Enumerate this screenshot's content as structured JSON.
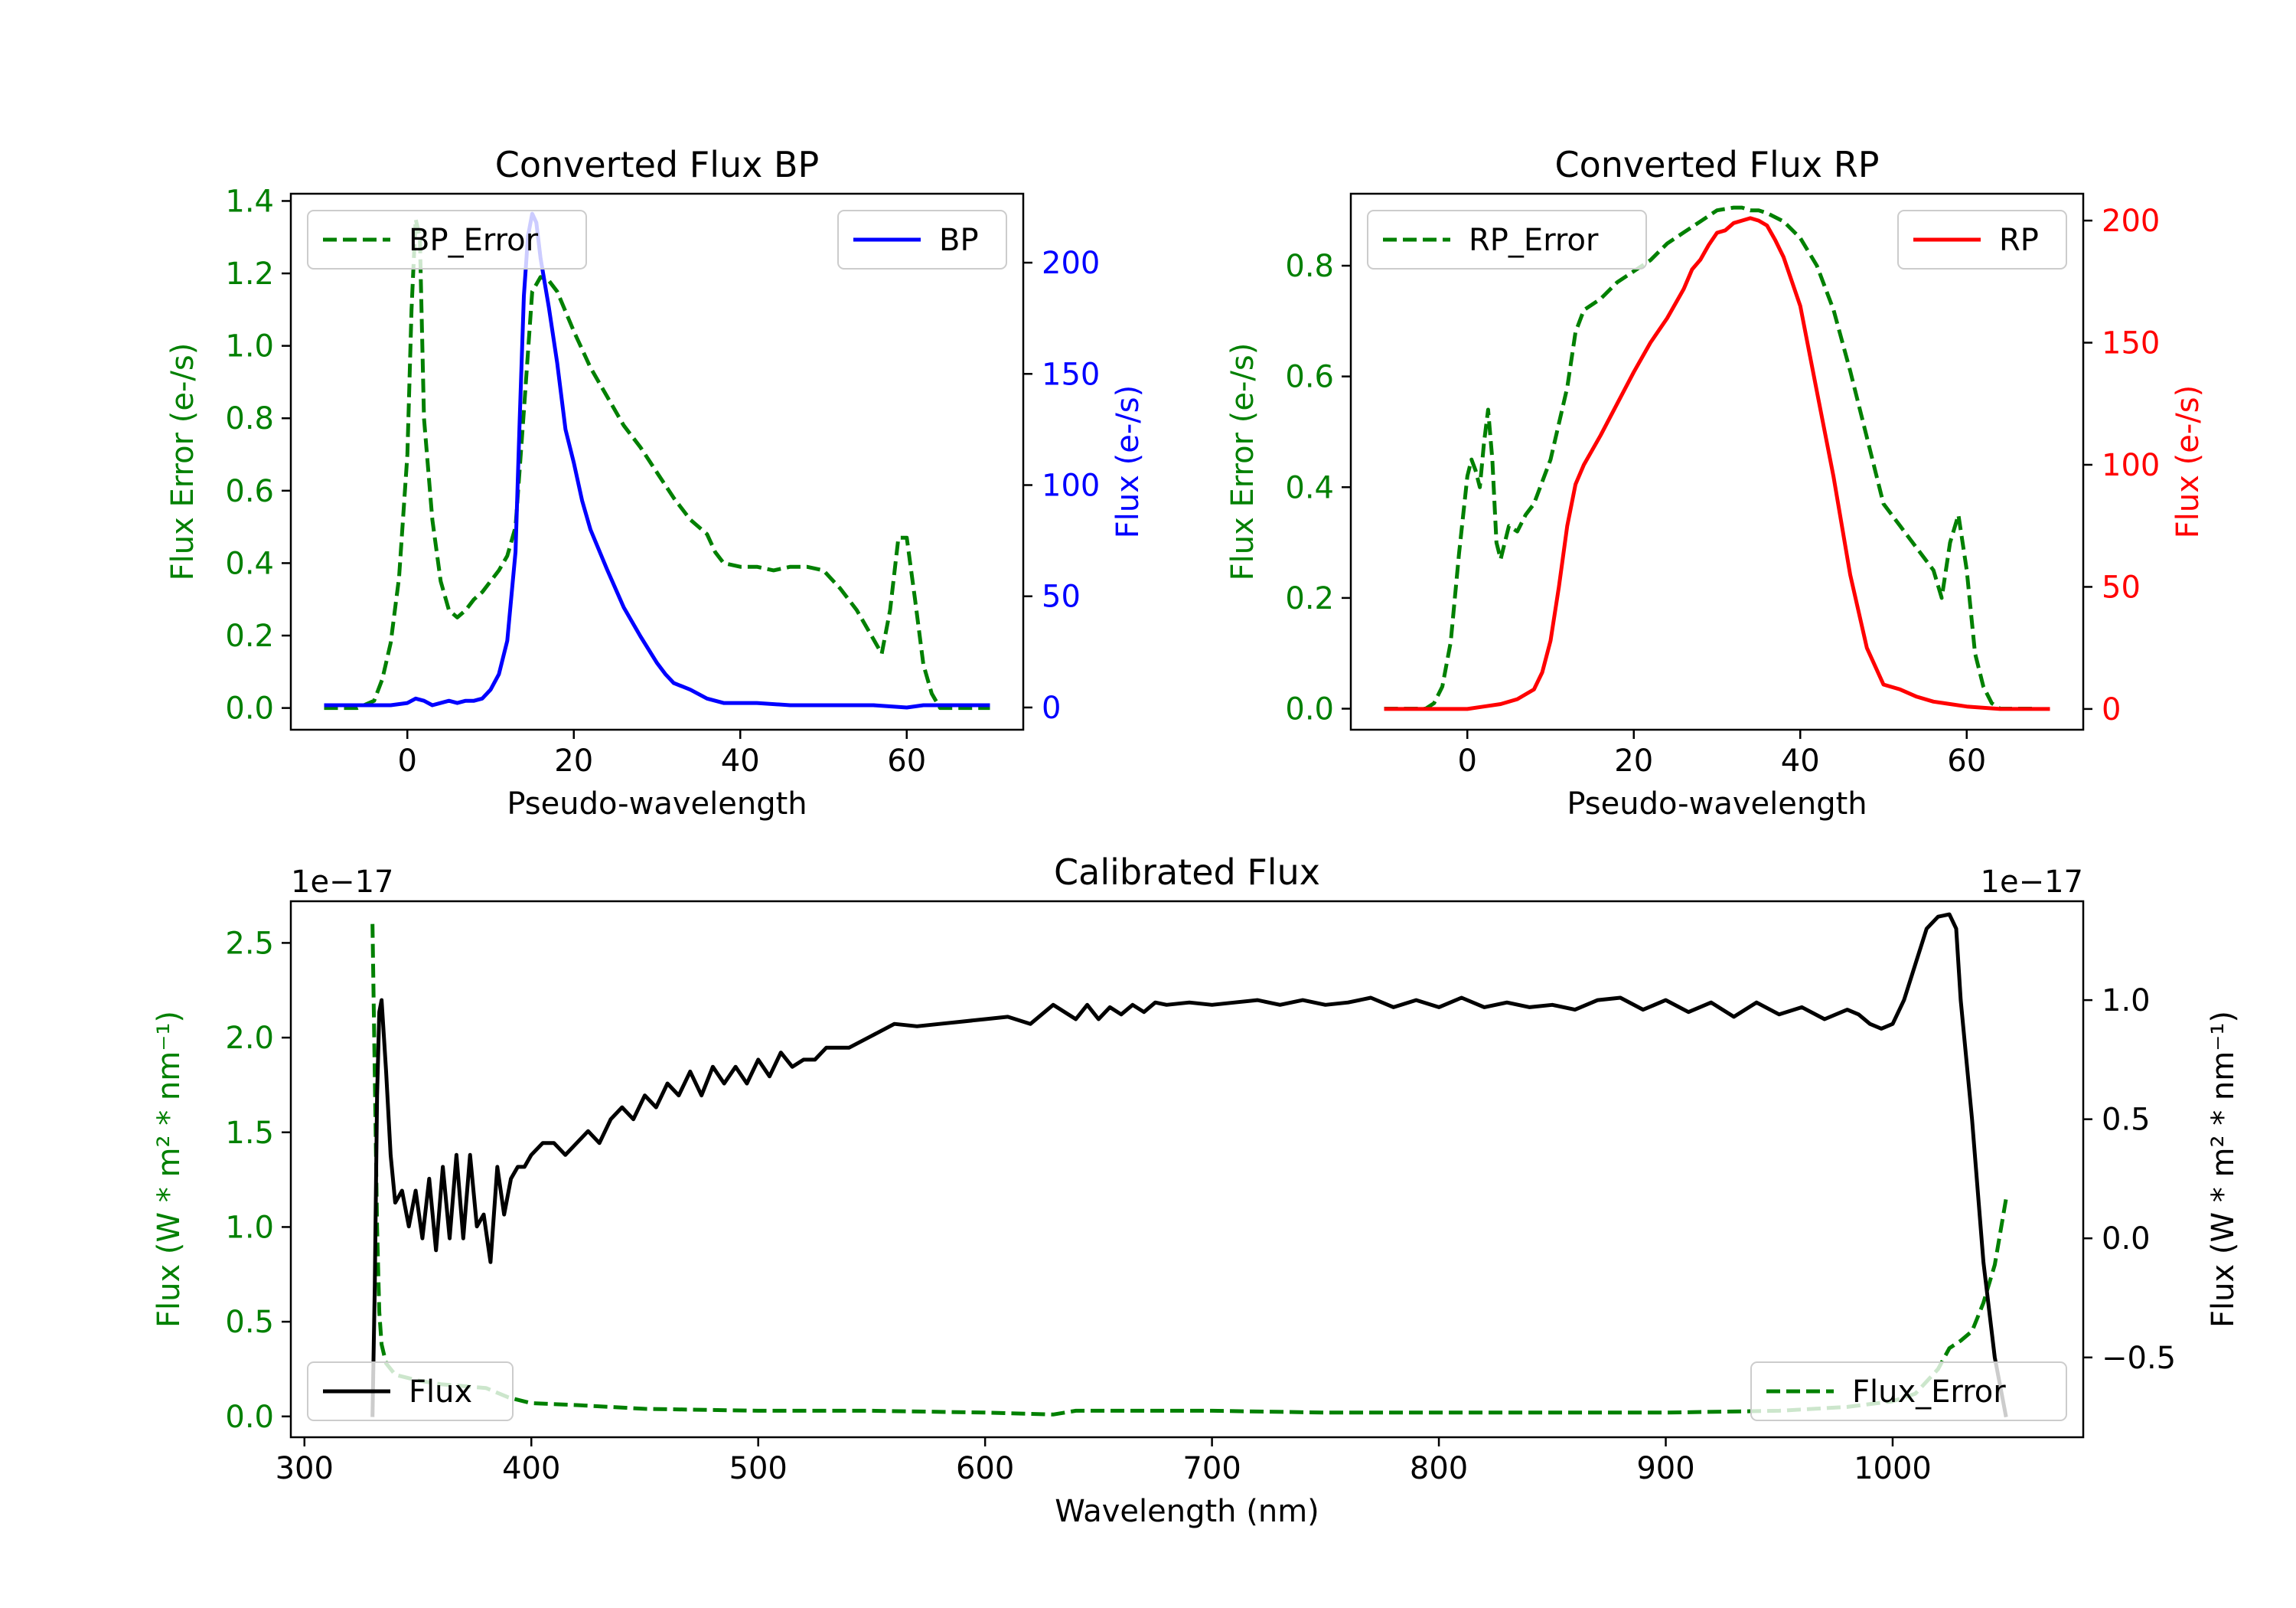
{
  "colors": {
    "green": "#008000",
    "blue": "#0000ff",
    "red": "#ff0000",
    "black": "#000000",
    "axis": "#000000",
    "legend_edge": "#cccccc"
  },
  "chart_data": [
    {
      "id": "bp",
      "type": "line",
      "title": "Converted Flux BP",
      "xlabel": "Pseudo-wavelength",
      "ylabel_left": "Flux Error (e-/s)",
      "ylabel_right": "Flux (e-/s)",
      "xlim": [
        -14,
        74
      ],
      "ylim_left": [
        -0.06,
        1.42
      ],
      "ylim_right": [
        -10,
        231
      ],
      "xticks": [
        0,
        20,
        40,
        60
      ],
      "yticks_left": [
        0.0,
        0.2,
        0.4,
        0.6,
        0.8,
        1.0,
        1.2,
        1.4
      ],
      "yticks_right": [
        0,
        50,
        100,
        150,
        200
      ],
      "left_color": "green",
      "right_color": "blue",
      "series": [
        {
          "name": "BP_Error",
          "axis": "left",
          "color": "green",
          "style": "dashed",
          "legend": "top-left",
          "x": [
            -10,
            -6,
            -4,
            -3,
            -2,
            -1,
            0,
            0.5,
            1,
            1.5,
            2,
            3,
            4,
            5,
            6,
            7,
            8,
            9,
            10,
            11,
            12,
            13,
            14,
            15,
            16,
            17,
            18,
            20,
            22,
            24,
            26,
            28,
            30,
            32,
            34,
            35,
            36,
            37,
            38,
            40,
            42,
            44,
            46,
            48,
            50,
            52,
            54,
            56,
            57,
            58,
            59,
            60,
            61,
            62,
            63,
            64,
            66,
            68,
            70
          ],
          "values": [
            0.0,
            0.0,
            0.02,
            0.08,
            0.18,
            0.36,
            0.7,
            1.1,
            1.35,
            1.3,
            0.8,
            0.52,
            0.35,
            0.27,
            0.25,
            0.27,
            0.3,
            0.32,
            0.35,
            0.38,
            0.42,
            0.5,
            0.82,
            1.15,
            1.19,
            1.18,
            1.15,
            1.04,
            0.94,
            0.86,
            0.78,
            0.72,
            0.65,
            0.58,
            0.52,
            0.5,
            0.48,
            0.43,
            0.4,
            0.39,
            0.39,
            0.38,
            0.39,
            0.39,
            0.38,
            0.33,
            0.27,
            0.19,
            0.15,
            0.27,
            0.47,
            0.47,
            0.3,
            0.12,
            0.04,
            0.0,
            0.0,
            0.0,
            0.0
          ]
        },
        {
          "name": "BP",
          "axis": "right",
          "color": "blue",
          "style": "solid",
          "legend": "top-right",
          "x": [
            -10,
            -4,
            -2,
            0,
            1,
            2,
            3,
            4,
            5,
            6,
            7,
            8,
            9,
            10,
            11,
            12,
            13,
            13.5,
            14,
            14.5,
            15,
            15.5,
            16,
            17,
            18,
            19,
            20,
            21,
            22,
            24,
            26,
            28,
            30,
            31,
            32,
            34,
            36,
            38,
            40,
            42,
            46,
            50,
            56,
            60,
            62,
            66,
            70
          ],
          "values": [
            1,
            1,
            1,
            2,
            4,
            3,
            1,
            2,
            3,
            2,
            3,
            3,
            4,
            8,
            15,
            30,
            70,
            130,
            185,
            212,
            222,
            218,
            202,
            180,
            155,
            125,
            110,
            93,
            80,
            62,
            45,
            32,
            20,
            15,
            11,
            8,
            4,
            2,
            2,
            2,
            1,
            1,
            1,
            0,
            1,
            1,
            1
          ]
        }
      ]
    },
    {
      "id": "rp",
      "type": "line",
      "title": "Converted Flux RP",
      "xlabel": "Pseudo-wavelength",
      "ylabel_left": "Flux Error (e-/s)",
      "ylabel_right": "Flux (e-/s)",
      "xlim": [
        -14,
        74
      ],
      "ylim_left": [
        -0.038,
        0.93
      ],
      "ylim_right": [
        -8.5,
        211
      ],
      "xticks": [
        0,
        20,
        40,
        60
      ],
      "yticks_left": [
        0.0,
        0.2,
        0.4,
        0.6,
        0.8
      ],
      "yticks_right": [
        0,
        50,
        100,
        150,
        200
      ],
      "left_color": "green",
      "right_color": "red",
      "series": [
        {
          "name": "RP_Error",
          "axis": "left",
          "color": "green",
          "style": "dashed",
          "legend": "top-left",
          "x": [
            -10,
            -5,
            -4,
            -3,
            -2,
            -1,
            0,
            0.5,
            1,
            1.5,
            2,
            2.5,
            3,
            3.5,
            4,
            5,
            6,
            7,
            8,
            10,
            12,
            13,
            14,
            16,
            18,
            20,
            22,
            24,
            26,
            28,
            30,
            32,
            33,
            34,
            35,
            36,
            38,
            40,
            42,
            44,
            46,
            48,
            50,
            52,
            54,
            56,
            57,
            58,
            59,
            60,
            61,
            62,
            63,
            64,
            65,
            66,
            68
          ],
          "values": [
            0.0,
            0.0,
            0.01,
            0.04,
            0.12,
            0.28,
            0.42,
            0.45,
            0.43,
            0.4,
            0.48,
            0.54,
            0.45,
            0.3,
            0.27,
            0.33,
            0.32,
            0.35,
            0.37,
            0.45,
            0.58,
            0.68,
            0.72,
            0.74,
            0.77,
            0.79,
            0.81,
            0.84,
            0.86,
            0.88,
            0.9,
            0.905,
            0.905,
            0.9,
            0.9,
            0.895,
            0.88,
            0.85,
            0.8,
            0.72,
            0.61,
            0.49,
            0.37,
            0.33,
            0.29,
            0.25,
            0.2,
            0.3,
            0.35,
            0.25,
            0.1,
            0.04,
            0.01,
            0.0,
            0.0,
            0.0,
            0.0
          ]
        },
        {
          "name": "RP",
          "axis": "right",
          "color": "red",
          "style": "solid",
          "legend": "top-right",
          "x": [
            -10,
            -4,
            0,
            2,
            4,
            6,
            8,
            9,
            10,
            11,
            12,
            13,
            14,
            16,
            18,
            20,
            22,
            24,
            26,
            27,
            28,
            29,
            30,
            31,
            32,
            33,
            34,
            35,
            36,
            37,
            38,
            40,
            42,
            44,
            46,
            48,
            50,
            52,
            54,
            56,
            60,
            64,
            70
          ],
          "values": [
            0,
            0,
            0,
            1,
            2,
            4,
            8,
            15,
            28,
            50,
            75,
            92,
            100,
            112,
            125,
            138,
            150,
            160,
            172,
            180,
            184,
            190,
            195,
            196,
            199,
            200,
            201,
            200,
            198,
            192,
            185,
            165,
            130,
            95,
            55,
            25,
            10,
            8,
            5,
            3,
            1,
            0,
            0
          ]
        }
      ]
    },
    {
      "id": "cal",
      "type": "line",
      "title": "Calibrated Flux",
      "xlabel": "Wavelength (nm)",
      "ylabel_left": "Flux (W * m² * nm⁻¹)",
      "ylabel_right": "Flux (W * m² * nm⁻¹)",
      "offset_left": "1e−17",
      "offset_right": "1e−17",
      "xlim": [
        294,
        1084
      ],
      "ylim_left": [
        -0.11,
        2.72
      ],
      "ylim_right": [
        -0.835,
        1.415
      ],
      "xticks": [
        300,
        400,
        500,
        600,
        700,
        800,
        900,
        1000
      ],
      "yticks_left": [
        0.0,
        0.5,
        1.0,
        1.5,
        2.0,
        2.5
      ],
      "yticks_left_labels": [
        "0.0",
        "0.5",
        "1.0",
        "1.5",
        "2.0",
        "2.5"
      ],
      "yticks_right": [
        -0.5,
        0.0,
        0.5,
        1.0
      ],
      "yticks_right_labels": [
        "−0.5",
        "0.0",
        "0.5",
        "1.0"
      ],
      "left_color": "green",
      "right_color": "black",
      "series": [
        {
          "name": "Flux_Error",
          "axis": "left",
          "color": "green",
          "style": "dashed",
          "legend": "bottom-right",
          "x": [
            330,
            331,
            332,
            333,
            334,
            336,
            340,
            350,
            360,
            370,
            380,
            390,
            400,
            420,
            450,
            500,
            550,
            600,
            630,
            640,
            650,
            700,
            750,
            800,
            850,
            900,
            950,
            980,
            1000,
            1010,
            1020,
            1025,
            1030,
            1035,
            1040,
            1045,
            1050
          ],
          "values": [
            2.6,
            1.8,
            1.0,
            0.55,
            0.38,
            0.28,
            0.22,
            0.19,
            0.17,
            0.16,
            0.15,
            0.1,
            0.07,
            0.06,
            0.04,
            0.03,
            0.03,
            0.02,
            0.01,
            0.03,
            0.03,
            0.03,
            0.02,
            0.02,
            0.02,
            0.02,
            0.03,
            0.05,
            0.08,
            0.12,
            0.25,
            0.36,
            0.4,
            0.45,
            0.6,
            0.8,
            1.15
          ]
        },
        {
          "name": "Flux",
          "axis": "right",
          "color": "black",
          "style": "solid",
          "legend": "bottom-left",
          "x": [
            330,
            331,
            332,
            333,
            334,
            336,
            338,
            340,
            343,
            346,
            349,
            352,
            355,
            358,
            361,
            364,
            367,
            370,
            373,
            376,
            379,
            382,
            385,
            388,
            391,
            394,
            397,
            400,
            405,
            410,
            415,
            420,
            425,
            430,
            435,
            440,
            445,
            450,
            455,
            460,
            465,
            470,
            475,
            480,
            485,
            490,
            495,
            500,
            505,
            510,
            515,
            520,
            525,
            530,
            540,
            550,
            560,
            570,
            580,
            590,
            600,
            610,
            620,
            630,
            640,
            645,
            650,
            655,
            660,
            665,
            670,
            675,
            680,
            690,
            700,
            710,
            720,
            730,
            740,
            750,
            760,
            770,
            780,
            790,
            800,
            810,
            820,
            830,
            840,
            850,
            860,
            870,
            880,
            890,
            900,
            910,
            920,
            930,
            940,
            950,
            960,
            970,
            980,
            985,
            990,
            995,
            1000,
            1005,
            1010,
            1015,
            1020,
            1025,
            1028,
            1030,
            1035,
            1040,
            1045,
            1050
          ],
          "values": [
            -0.75,
            -0.2,
            0.6,
            0.95,
            1.0,
            0.7,
            0.35,
            0.15,
            0.2,
            0.05,
            0.2,
            0.0,
            0.25,
            -0.05,
            0.3,
            0.0,
            0.35,
            0.0,
            0.35,
            0.05,
            0.1,
            -0.1,
            0.3,
            0.1,
            0.25,
            0.3,
            0.3,
            0.35,
            0.4,
            0.4,
            0.35,
            0.4,
            0.45,
            0.4,
            0.5,
            0.55,
            0.5,
            0.6,
            0.55,
            0.65,
            0.6,
            0.7,
            0.6,
            0.72,
            0.65,
            0.72,
            0.65,
            0.75,
            0.68,
            0.78,
            0.72,
            0.75,
            0.75,
            0.8,
            0.8,
            0.85,
            0.9,
            0.89,
            0.9,
            0.91,
            0.92,
            0.93,
            0.9,
            0.98,
            0.92,
            0.98,
            0.92,
            0.97,
            0.94,
            0.98,
            0.95,
            0.99,
            0.98,
            0.99,
            0.98,
            0.99,
            1.0,
            0.98,
            1.0,
            0.98,
            0.99,
            1.01,
            0.97,
            1.0,
            0.97,
            1.01,
            0.97,
            0.99,
            0.97,
            0.98,
            0.96,
            1.0,
            1.01,
            0.96,
            1.0,
            0.95,
            0.99,
            0.93,
            0.99,
            0.94,
            0.97,
            0.92,
            0.96,
            0.94,
            0.9,
            0.88,
            0.9,
            1.0,
            1.15,
            1.3,
            1.35,
            1.36,
            1.3,
            1.0,
            0.5,
            -0.1,
            -0.5,
            -0.75
          ]
        }
      ]
    }
  ]
}
